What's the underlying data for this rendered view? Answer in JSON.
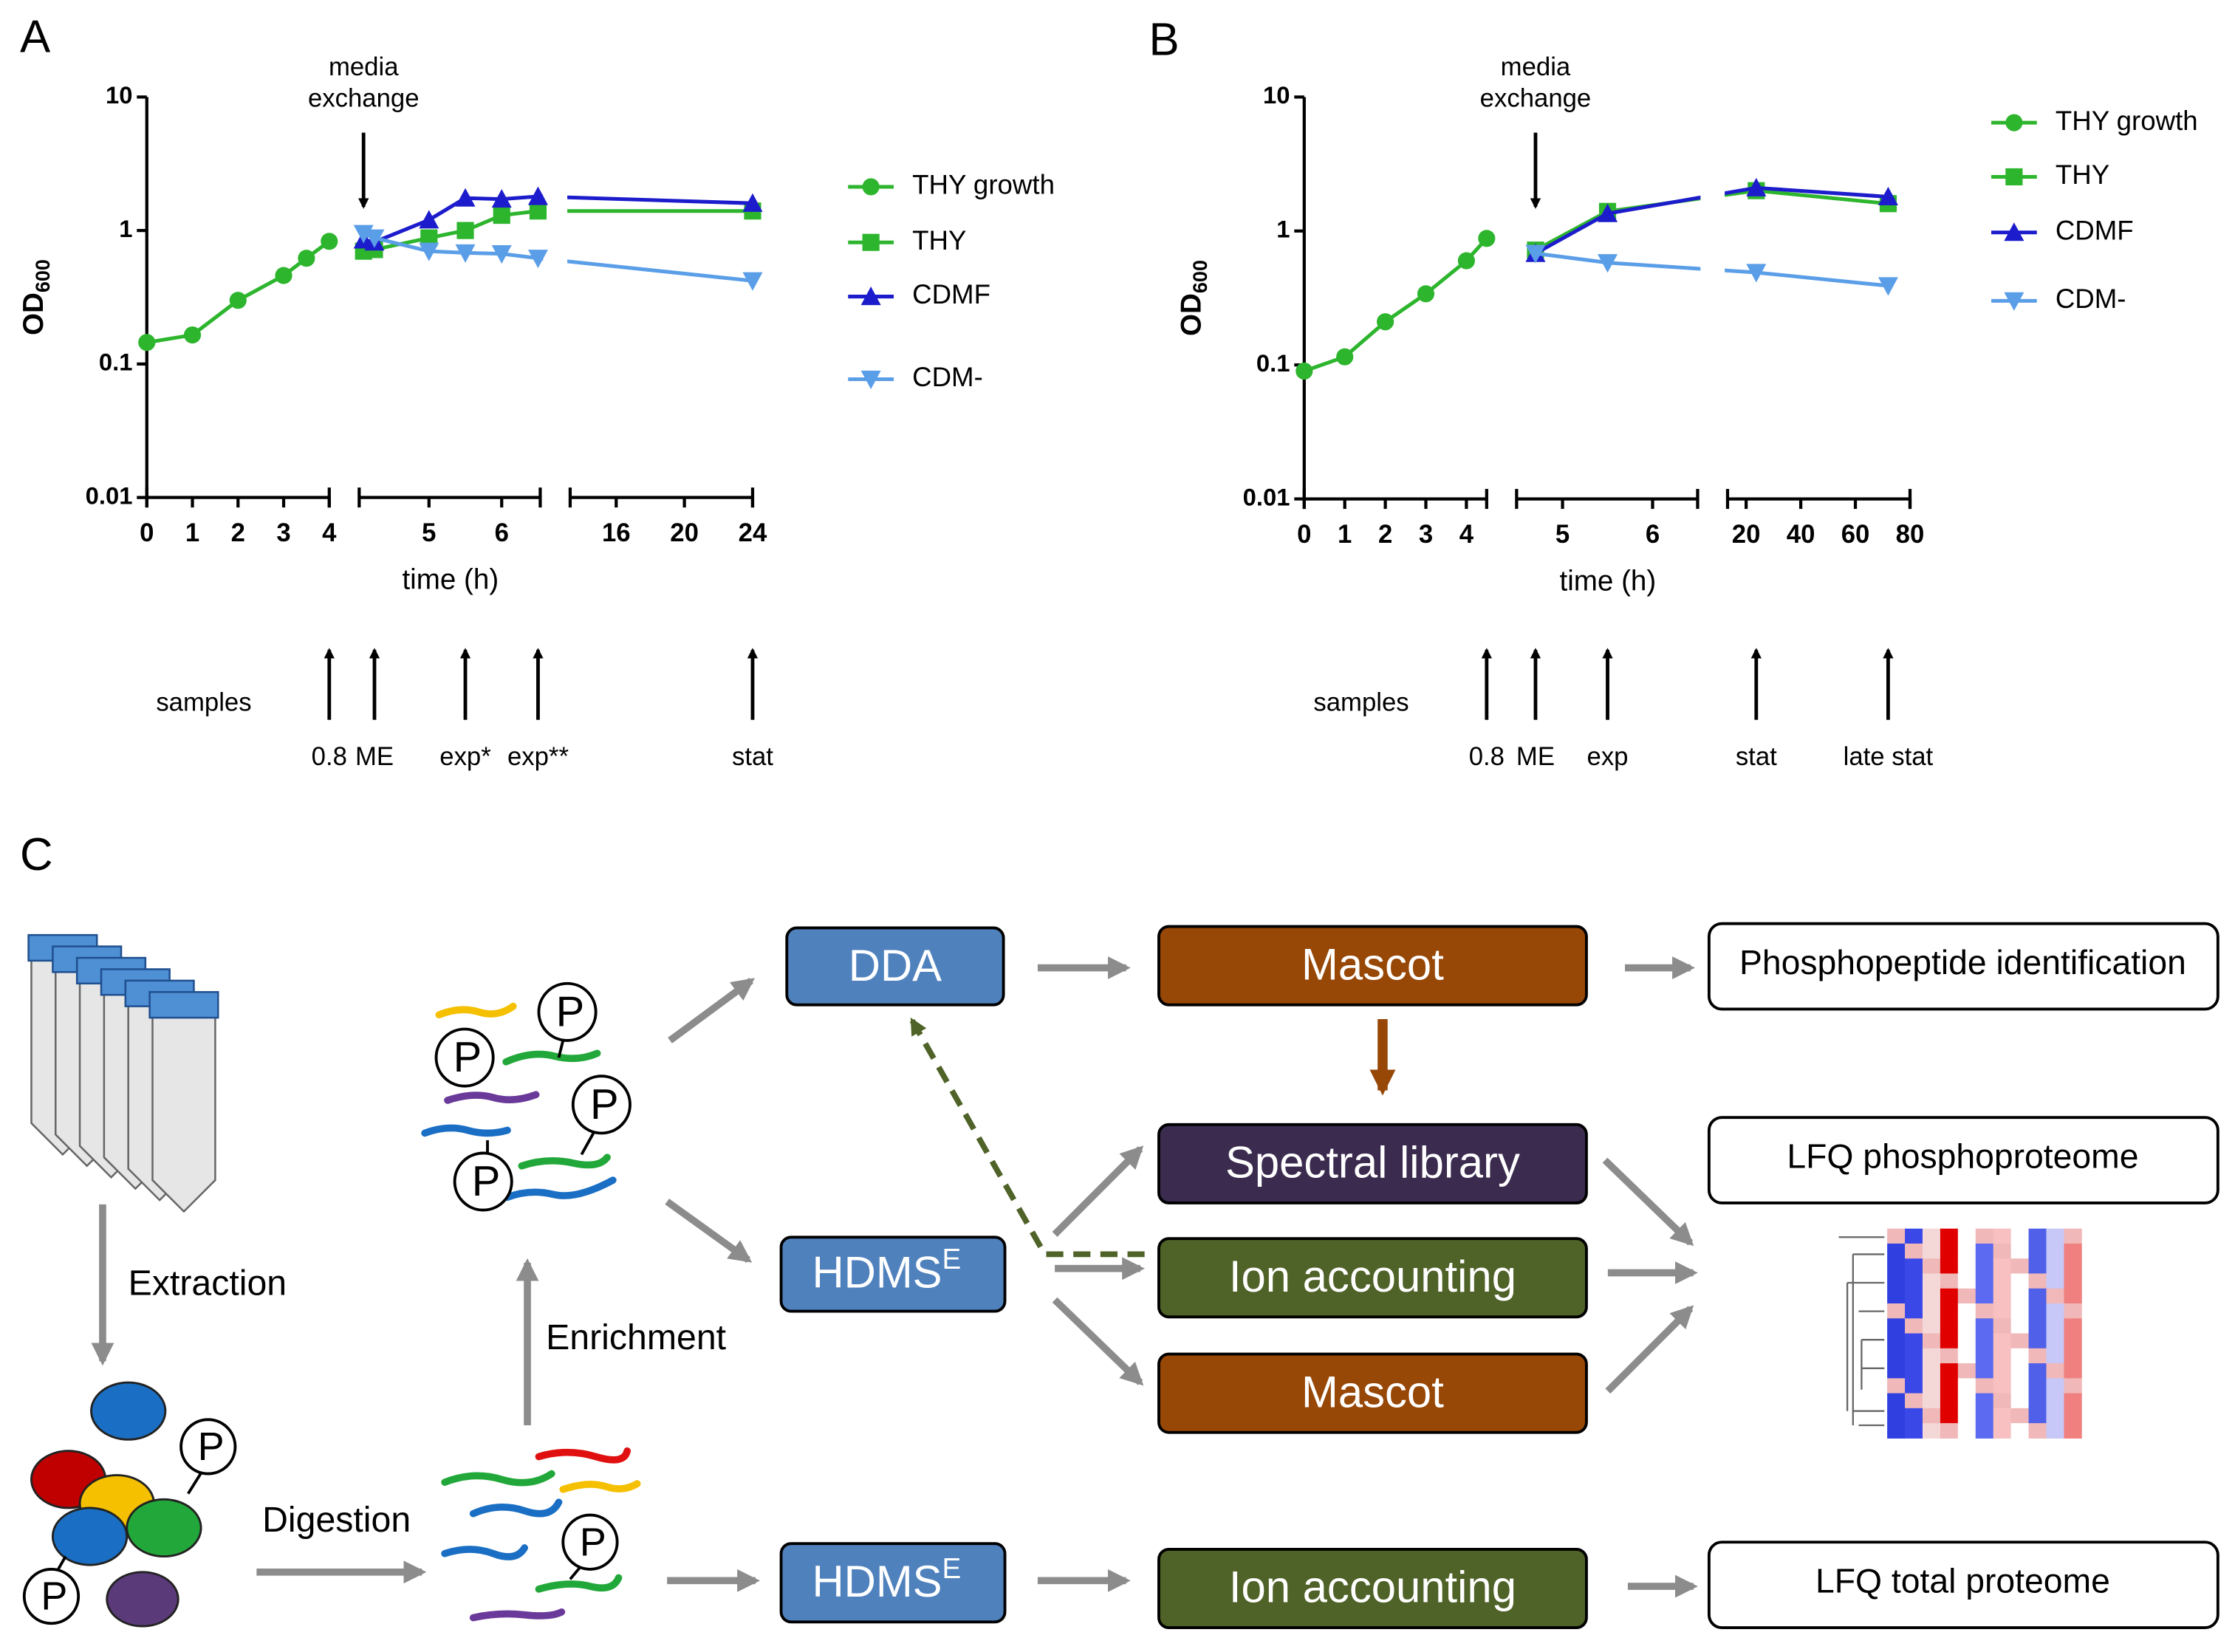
{
  "panel_labels": [
    "A",
    "B",
    "C"
  ],
  "chart_data": [
    {
      "type": "line",
      "yscale": "log",
      "xlabel": "time (h)",
      "ylabel": {
        "text": "OD",
        "subscript": "600"
      },
      "ylim": [
        0.01,
        10
      ],
      "yticks": [
        0.01,
        0.1,
        1,
        10
      ],
      "x_segments": [
        {
          "xlim": [
            0,
            4
          ],
          "xticks": [
            0,
            1,
            2,
            3,
            4
          ]
        },
        {
          "xlim": [
            4.04,
            6.53
          ],
          "xticks": [
            5,
            6
          ]
        },
        {
          "xlim": [
            13.3,
            24
          ],
          "xticks": [
            16,
            20,
            24
          ]
        }
      ],
      "series": [
        {
          "name": "THY growth",
          "color": "#2db52d",
          "marker": "circle",
          "x": [
            0,
            1,
            2,
            3,
            3.5,
            4
          ],
          "values": [
            0.145,
            0.165,
            0.3,
            0.46,
            0.62,
            0.83
          ]
        },
        {
          "name": "THY",
          "color": "#2db52d",
          "marker": "square",
          "x": [
            4.1,
            4.25,
            5,
            5.5,
            6,
            6.5,
            24
          ],
          "values": [
            0.7,
            0.72,
            0.88,
            1.0,
            1.3,
            1.4,
            1.4
          ]
        },
        {
          "name": "CDMF",
          "color": "#1c1ccc",
          "marker": "triangle",
          "x": [
            4.1,
            4.25,
            5,
            5.5,
            6,
            6.5,
            24
          ],
          "values": [
            0.85,
            0.82,
            1.2,
            1.75,
            1.72,
            1.8,
            1.6
          ]
        },
        {
          "name": "CDM-",
          "color": "#5b9ee8",
          "marker": "triangle-down",
          "x": [
            4.1,
            4.25,
            5,
            5.5,
            6,
            6.5,
            24
          ],
          "values": [
            0.95,
            0.88,
            0.7,
            0.68,
            0.67,
            0.62,
            0.42
          ]
        }
      ],
      "media_exchange": {
        "lines": [
          "media",
          "exchange"
        ],
        "x": 4.1
      },
      "samples": {
        "label": "samples",
        "points": [
          {
            "x": 4,
            "label": "0.8"
          },
          {
            "x": 4.25,
            "label": "ME"
          },
          {
            "x": 5.5,
            "label": "exp*"
          },
          {
            "x": 6.5,
            "label": "exp**"
          },
          {
            "x": 24,
            "label": "stat"
          }
        ]
      }
    },
    {
      "type": "line",
      "yscale": "log",
      "xlabel": "time (h)",
      "ylabel": {
        "text": "OD",
        "subscript": "600"
      },
      "ylim": [
        0.01,
        10
      ],
      "yticks": [
        0.01,
        0.1,
        1,
        10
      ],
      "x_segments": [
        {
          "xlim": [
            0,
            4.5
          ],
          "xticks": [
            0,
            1,
            2,
            3,
            4
          ]
        },
        {
          "xlim": [
            4.49,
            6.5
          ],
          "xticks": [
            5,
            6
          ]
        },
        {
          "xlim": [
            13.2,
            80
          ],
          "xticks": [
            20,
            40,
            60,
            80
          ]
        }
      ],
      "series": [
        {
          "name": "THY growth",
          "color": "#2db52d",
          "marker": "circle",
          "x": [
            0,
            1,
            2,
            3,
            4,
            4.5
          ],
          "values": [
            0.09,
            0.115,
            0.21,
            0.34,
            0.6,
            0.88
          ]
        },
        {
          "name": "THY",
          "color": "#2db52d",
          "marker": "square",
          "x": [
            4.7,
            5.5,
            23.7,
            72
          ],
          "values": [
            0.72,
            1.4,
            2.0,
            1.6
          ]
        },
        {
          "name": "CDMF",
          "color": "#1c1ccc",
          "marker": "triangle",
          "x": [
            4.7,
            5.5,
            23.7,
            72
          ],
          "values": [
            0.68,
            1.35,
            2.1,
            1.8
          ]
        },
        {
          "name": "CDM-",
          "color": "#5b9ee8",
          "marker": "triangle-down",
          "x": [
            4.7,
            5.5,
            23.7,
            72
          ],
          "values": [
            0.68,
            0.58,
            0.49,
            0.39
          ]
        }
      ],
      "media_exchange": {
        "lines": [
          "media",
          "exchange"
        ],
        "x": 4.7
      },
      "samples": {
        "label": "samples",
        "points": [
          {
            "x": 4.5,
            "label": "0.8"
          },
          {
            "x": 4.7,
            "label": "ME"
          },
          {
            "x": 5.5,
            "label": "exp"
          },
          {
            "x": 23.7,
            "label": "stat"
          },
          {
            "x": 72,
            "label": "late stat"
          }
        ]
      }
    }
  ],
  "diagram": {
    "steps": [
      "Extraction",
      "Digestion",
      "Enrichment"
    ],
    "acquisition": [
      "DDA",
      {
        "text": "HDMS",
        "sup": "E"
      },
      {
        "text": "HDMS",
        "sup": "E"
      }
    ],
    "processing": [
      "Mascot",
      "Spectral library",
      "Ion accounting",
      "Mascot",
      "Ion accounting"
    ],
    "outputs": [
      "Phosphopeptide identification",
      "LFQ phosphoproteome",
      "LFQ total proteome"
    ],
    "phospho_symbol": "P"
  }
}
